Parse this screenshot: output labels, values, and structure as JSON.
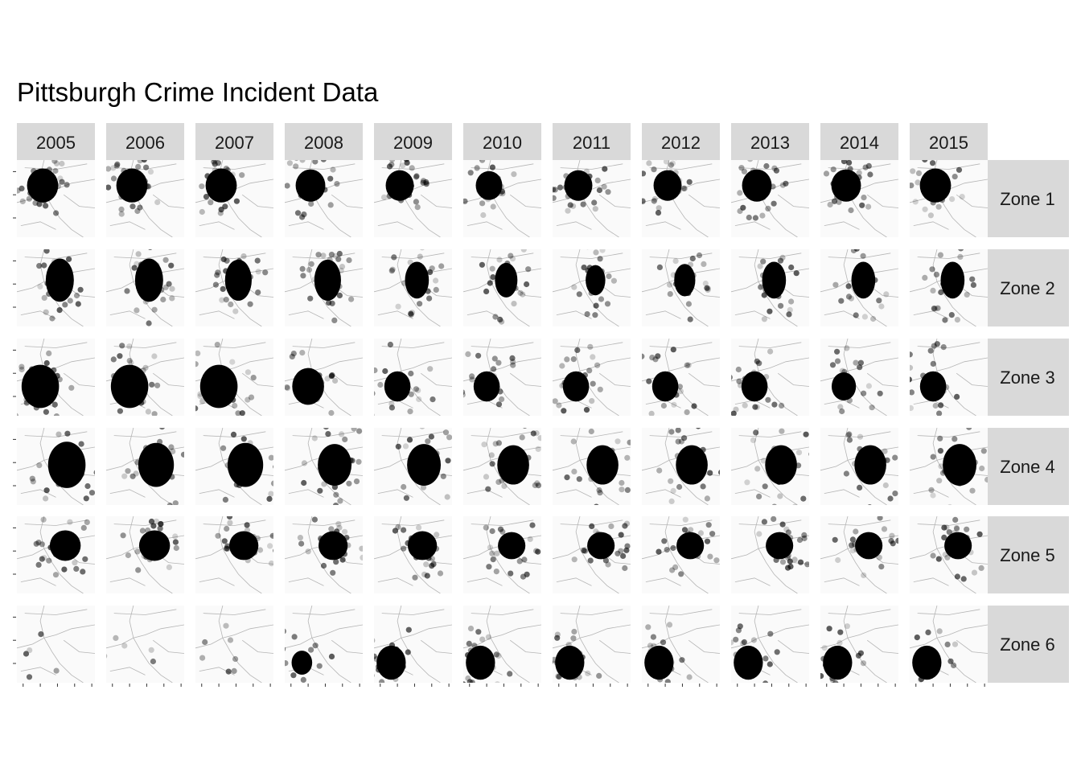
{
  "title": "Pittsburgh Crime Incident Data",
  "chart_data": {
    "type": "scatter",
    "title": "Pittsburgh Crime Incident Data",
    "facet_columns": [
      "2005",
      "2006",
      "2007",
      "2008",
      "2009",
      "2010",
      "2011",
      "2012",
      "2013",
      "2014",
      "2015"
    ],
    "facet_rows": [
      "Zone 1",
      "Zone 2",
      "Zone 3",
      "Zone 4",
      "Zone 5",
      "Zone 6"
    ],
    "background": "map of Pittsburgh (grayscale basemap)",
    "point_color": "#000000",
    "strip_color": "#d9d9d9",
    "grid": false,
    "xlabel": "",
    "ylabel": "",
    "zones": {
      "Zone 1": {
        "center": [
          0.33,
          0.33
        ],
        "rx": 0.2,
        "ry": 0.22
      },
      "Zone 2": {
        "center": [
          0.55,
          0.4
        ],
        "rx": 0.18,
        "ry": 0.28
      },
      "Zone 3": {
        "center": [
          0.3,
          0.62
        ],
        "rx": 0.24,
        "ry": 0.28
      },
      "Zone 4": {
        "center": [
          0.64,
          0.48
        ],
        "rx": 0.24,
        "ry": 0.3
      },
      "Zone 5": {
        "center": [
          0.62,
          0.38
        ],
        "rx": 0.22,
        "ry": 0.22
      },
      "Zone 6": {
        "center": [
          0.22,
          0.74
        ],
        "rx": 0.22,
        "ry": 0.26
      }
    },
    "relative_density_by_year": {
      "Zone 1": [
        1.0,
        1.0,
        1.0,
        0.95,
        0.9,
        0.85,
        0.9,
        0.9,
        0.95,
        0.95,
        1.0
      ],
      "Zone 2": [
        1.0,
        1.0,
        0.95,
        0.95,
        0.85,
        0.8,
        0.7,
        0.75,
        0.85,
        0.85,
        0.85
      ],
      "Zone 3": [
        1.0,
        1.0,
        1.0,
        0.85,
        0.7,
        0.7,
        0.7,
        0.7,
        0.7,
        0.65,
        0.7
      ],
      "Zone 4": [
        1.0,
        0.95,
        0.95,
        0.9,
        0.9,
        0.85,
        0.85,
        0.85,
        0.85,
        0.85,
        0.9
      ],
      "Zone 5": [
        0.9,
        0.9,
        0.85,
        0.85,
        0.85,
        0.8,
        0.8,
        0.8,
        0.8,
        0.8,
        0.8
      ],
      "Zone 6": [
        0.05,
        0.08,
        0.2,
        0.6,
        0.85,
        0.85,
        0.85,
        0.85,
        0.85,
        0.85,
        0.85
      ]
    }
  }
}
